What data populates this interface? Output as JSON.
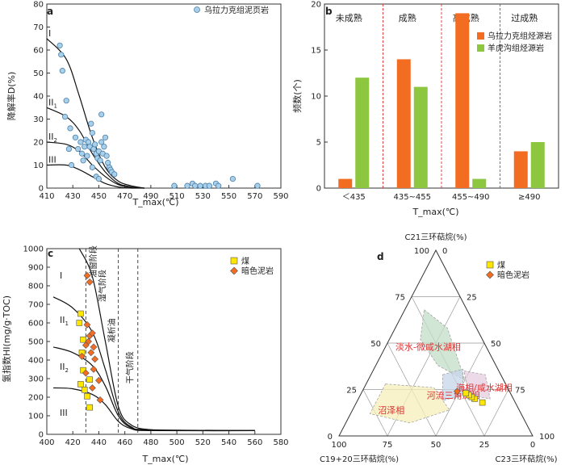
{
  "chart_data": [
    {
      "panel": "a",
      "type": "scatter",
      "xlabel": "T_max(℃)",
      "ylabel": "降解率D(%)",
      "xlim": [
        410,
        590
      ],
      "ylim": [
        0,
        80
      ],
      "xticks": [
        410,
        430,
        450,
        470,
        490,
        510,
        530,
        550,
        570,
        590
      ],
      "yticks": [
        0,
        10,
        20,
        30,
        40,
        50,
        60,
        70,
        80
      ],
      "legend": "top-right",
      "series": [
        {
          "name": "乌拉力克组泥页岩",
          "color": "#a9d0ea",
          "points": [
            [
              420,
              62
            ],
            [
              421,
              58
            ],
            [
              422,
              51
            ],
            [
              424,
              31
            ],
            [
              425,
              38
            ],
            [
              428,
              26
            ],
            [
              427,
              17
            ],
            [
              429,
              10
            ],
            [
              432,
              22
            ],
            [
              434,
              17
            ],
            [
              436,
              20
            ],
            [
              437,
              15
            ],
            [
              438,
              12
            ],
            [
              439,
              18
            ],
            [
              440,
              21
            ],
            [
              441,
              14
            ],
            [
              442,
              20
            ],
            [
              443,
              18
            ],
            [
              444,
              28
            ],
            [
              445,
              24
            ],
            [
              446,
              17
            ],
            [
              447,
              19
            ],
            [
              448,
              15
            ],
            [
              449,
              13
            ],
            [
              450,
              16
            ],
            [
              451,
              12
            ],
            [
              452,
              20
            ],
            [
              452,
              32
            ],
            [
              453,
              15
            ],
            [
              454,
              18
            ],
            [
              455,
              22
            ],
            [
              456,
              14
            ],
            [
              457,
              11
            ],
            [
              458,
              9
            ],
            [
              459,
              8
            ],
            [
              460,
              7
            ],
            [
              462,
              6
            ],
            [
              445,
              9
            ],
            [
              448,
              5
            ],
            [
              450,
              4
            ],
            [
              508,
              1
            ],
            [
              518,
              1
            ],
            [
              522,
              2
            ],
            [
              524,
              1
            ],
            [
              528,
              1
            ],
            [
              532,
              1
            ],
            [
              535,
              1
            ],
            [
              540,
              2
            ],
            [
              542,
              1
            ],
            [
              553,
              4
            ],
            [
              572,
              1
            ]
          ]
        }
      ],
      "curves": [
        {
          "label": "I",
          "points": [
            [
              410,
              65
            ],
            [
              425,
              56
            ],
            [
              435,
              40
            ],
            [
              445,
              22
            ],
            [
              455,
              9
            ],
            [
              465,
              3
            ],
            [
              475,
              1
            ],
            [
              485,
              0
            ]
          ]
        },
        {
          "label": "II1",
          "points": [
            [
              410,
              35
            ],
            [
              425,
              31
            ],
            [
              435,
              25
            ],
            [
              445,
              15
            ],
            [
              455,
              7
            ],
            [
              465,
              2
            ],
            [
              475,
              0.5
            ],
            [
              485,
              0
            ]
          ]
        },
        {
          "label": "II2",
          "points": [
            [
              410,
              20
            ],
            [
              425,
              19
            ],
            [
              435,
              16
            ],
            [
              445,
              10
            ],
            [
              455,
              5
            ],
            [
              465,
              1.5
            ],
            [
              475,
              0.3
            ],
            [
              485,
              0
            ]
          ]
        },
        {
          "label": "III",
          "points": [
            [
              410,
              10
            ],
            [
              425,
              10
            ],
            [
              435,
              8
            ],
            [
              445,
              5
            ],
            [
              455,
              2
            ],
            [
              465,
              0.5
            ],
            [
              475,
              0
            ],
            [
              485,
              0
            ]
          ]
        }
      ]
    },
    {
      "panel": "b",
      "type": "bar",
      "xlabel": "T_max(℃)",
      "ylabel": "频数(个)",
      "ylim": [
        0,
        20
      ],
      "yticks": [
        0,
        5,
        10,
        15,
        20
      ],
      "categories": [
        "＜435",
        "435~455",
        "455~490",
        "≥490"
      ],
      "stage_labels": [
        "未成熟",
        "成熟",
        "高成熟",
        "过成熟"
      ],
      "legend": "top-right",
      "series": [
        {
          "name": "乌拉力克组烃源岩",
          "color": "#f26d22",
          "values": [
            1,
            14,
            19,
            4
          ]
        },
        {
          "name": "羊虎沟组烃源岩",
          "color": "#8dc63f",
          "values": [
            12,
            11,
            1,
            5
          ]
        }
      ]
    },
    {
      "panel": "c",
      "type": "scatter",
      "xlabel": "T_max(℃)",
      "ylabel": "氢指数HI(mg/g·TOC)",
      "xlim": [
        400,
        580
      ],
      "ylim": [
        0,
        1000
      ],
      "xticks": [
        400,
        420,
        440,
        460,
        480,
        500,
        520,
        540,
        560,
        580
      ],
      "yticks": [
        0,
        100,
        200,
        300,
        400,
        500,
        600,
        700,
        800,
        900,
        1000
      ],
      "legend": "top-right",
      "zone_labels": [
        "I",
        "II1",
        "II2",
        "III"
      ],
      "stage_labels": [
        "油窗阶段",
        "湿气阶段",
        "凝析油",
        "干气阶段"
      ],
      "vlines": [
        430,
        455,
        470
      ],
      "series": [
        {
          "name": "煤",
          "color": "#ffe600",
          "marker": "square",
          "points": [
            [
              426,
              650
            ],
            [
              425,
              600
            ],
            [
              428,
              510
            ],
            [
              427,
              440
            ],
            [
              428,
              345
            ],
            [
              426,
              270
            ],
            [
              429,
              240
            ],
            [
              431,
              205
            ],
            [
              433,
              295
            ],
            [
              433,
              145
            ]
          ]
        },
        {
          "name": "暗色泥岩",
          "color": "#f26d22",
          "marker": "diamond",
          "points": [
            [
              431,
              855
            ],
            [
              433,
              820
            ],
            [
              431,
              590
            ],
            [
              433,
              530
            ],
            [
              435,
              545
            ],
            [
              432,
              500
            ],
            [
              436,
              470
            ],
            [
              430,
              480
            ],
            [
              434,
              440
            ],
            [
              437,
              405
            ],
            [
              427,
              420
            ],
            [
              436,
              350
            ],
            [
              430,
              330
            ],
            [
              440,
              290
            ],
            [
              435,
              250
            ],
            [
              441,
              185
            ]
          ]
        }
      ],
      "curves": [
        {
          "label": "I",
          "points": [
            [
              425,
              1000
            ],
            [
              435,
              850
            ],
            [
              445,
              500
            ],
            [
              455,
              150
            ],
            [
              465,
              50
            ],
            [
              480,
              25
            ],
            [
              500,
              20
            ],
            [
              560,
              20
            ]
          ]
        },
        {
          "label": "II1",
          "points": [
            [
              405,
              740
            ],
            [
              420,
              680
            ],
            [
              435,
              550
            ],
            [
              445,
              350
            ],
            [
              455,
              120
            ],
            [
              465,
              40
            ],
            [
              480,
              25
            ],
            [
              560,
              20
            ]
          ]
        },
        {
          "label": "II2",
          "points": [
            [
              405,
              470
            ],
            [
              420,
              440
            ],
            [
              435,
              370
            ],
            [
              445,
              260
            ],
            [
              455,
              100
            ],
            [
              465,
              35
            ],
            [
              480,
              22
            ],
            [
              560,
              20
            ]
          ]
        },
        {
          "label": "III",
          "points": [
            [
              405,
              250
            ],
            [
              420,
              245
            ],
            [
              435,
              215
            ],
            [
              445,
              160
            ],
            [
              455,
              70
            ],
            [
              465,
              30
            ],
            [
              480,
              20
            ],
            [
              560,
              20
            ]
          ]
        }
      ]
    },
    {
      "panel": "d",
      "type": "ternary",
      "axis_titles": {
        "top": "C21三环萜烷(%)",
        "left": "C19+20三环萜烷(%)",
        "right": "C23三环萜烷(%)"
      },
      "ticks": [
        0,
        25,
        50,
        75,
        100
      ],
      "legend": "top-right",
      "regions": [
        {
          "name": "淡水-微咸水湖相",
          "color": "#c3dec8"
        },
        {
          "name": "海相/咸水湖相",
          "color": "#e5cde0"
        },
        {
          "name": "河流三角洲相",
          "color": "#c7d6ea"
        },
        {
          "name": "沼泽相",
          "color": "#f6efb9"
        }
      ],
      "series": [
        {
          "name": "煤",
          "color": "#ffe600",
          "marker": "square",
          "points": [
            [
              18,
              17,
              65
            ],
            [
              20,
              20,
              60
            ],
            [
              21,
              21,
              58
            ],
            [
              22,
              22,
              56
            ],
            [
              23,
              23,
              54
            ]
          ]
        },
        {
          "name": "暗色泥岩",
          "color": "#f26d22",
          "marker": "diamond",
          "points": [
            [
              24,
              27,
              49
            ]
          ]
        }
      ]
    }
  ]
}
